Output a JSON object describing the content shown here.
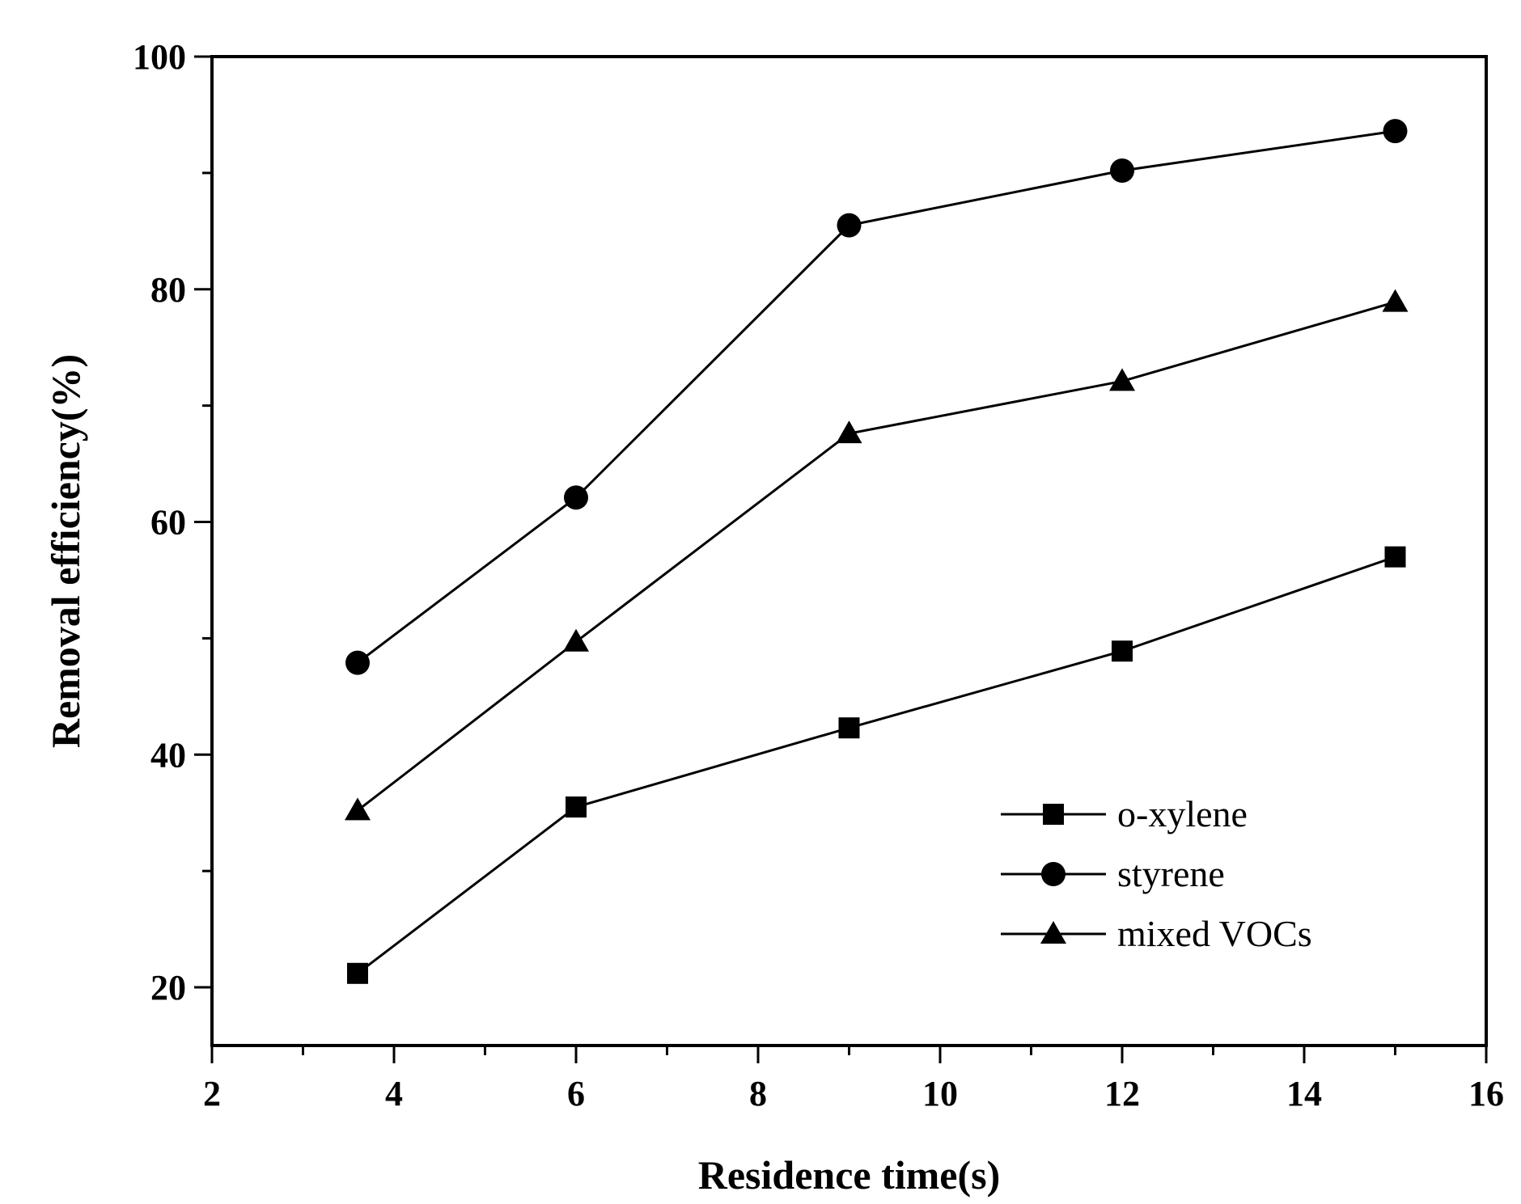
{
  "chart_data": {
    "type": "line",
    "title": "",
    "xlabel": "Residence time(s)",
    "ylabel": "Removal efficiency(%)",
    "xlim": [
      2,
      16
    ],
    "ylim": [
      15,
      100
    ],
    "x_ticks": [
      2,
      4,
      6,
      8,
      10,
      12,
      14,
      16
    ],
    "y_ticks": [
      20,
      40,
      60,
      80,
      100
    ],
    "grid": false,
    "legend_position": "bottom-right",
    "series": [
      {
        "name": "o-xylene",
        "marker": "square",
        "x": [
          3.6,
          6,
          9,
          12,
          15
        ],
        "y": [
          21.2,
          35.5,
          42.3,
          48.9,
          57.0
        ]
      },
      {
        "name": "styrene",
        "marker": "circle",
        "x": [
          3.6,
          6,
          9,
          12,
          15
        ],
        "y": [
          47.9,
          62.1,
          85.5,
          90.2,
          93.6
        ]
      },
      {
        "name": "mixed VOCs",
        "marker": "triangle",
        "x": [
          3.6,
          6,
          9,
          12,
          15
        ],
        "y": [
          35.2,
          49.7,
          67.6,
          72.1,
          78.9
        ]
      }
    ],
    "colors": {
      "line": "#000000",
      "marker": "#000000"
    }
  }
}
